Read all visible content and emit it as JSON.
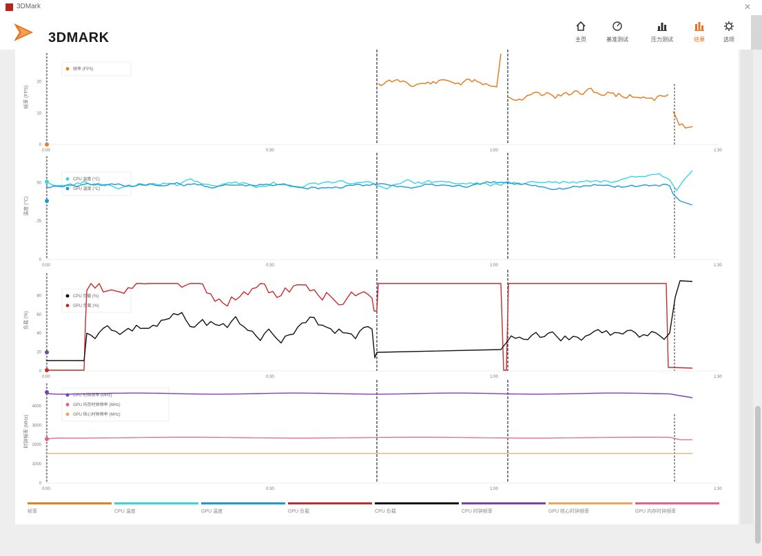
{
  "window": {
    "title": "3DMark"
  },
  "brand": {
    "name": "3DMARK"
  },
  "nav": [
    {
      "label": "主页",
      "icon": "home-icon"
    },
    {
      "label": "基准测试",
      "icon": "speedometer-icon"
    },
    {
      "label": "压力测试",
      "icon": "bar-chart-icon"
    },
    {
      "label": "结果",
      "icon": "results-chart-icon",
      "active": true
    },
    {
      "label": "选项",
      "icon": "gear-icon"
    }
  ],
  "colors": {
    "orange": "#e87d22",
    "cyan": "#35d6e0",
    "blue": "#1a9ad8",
    "red": "#c62b2b",
    "black": "#111111",
    "purple": "#7b3fb6",
    "peach": "#f0a35a",
    "pink": "#e4607e",
    "accent": "#e8741e"
  },
  "chart_data": [
    {
      "type": "line",
      "ylabel": "帧率 (FPS)",
      "y_ticks": [
        "0",
        "10",
        "20"
      ],
      "ylim": [
        0,
        28
      ],
      "x_ticks": [
        "0:00",
        "0:30",
        "1:00",
        "1:30"
      ],
      "legend": [
        "帧率 (FPS)"
      ],
      "series": [
        {
          "name": "帧率 (FPS)",
          "color": "orange",
          "values": []
        }
      ]
    },
    {
      "type": "line",
      "ylabel": "温度 (°C)",
      "y_ticks": [
        "0",
        "25",
        "50"
      ],
      "ylim": [
        0,
        65
      ],
      "x_ticks": [
        "0:00",
        "0:30",
        "1:00",
        "1:30"
      ],
      "legend": [
        "CPU 温度 (°C)",
        "GPU 温度 (°C)"
      ],
      "series": [
        {
          "name": "CPU 温度 (°C)",
          "color": "cyan"
        },
        {
          "name": "GPU 温度 (°C)",
          "color": "blue"
        }
      ]
    },
    {
      "type": "line",
      "ylabel": "负载 (%)",
      "y_ticks": [
        "0",
        "20",
        "40",
        "60",
        "80"
      ],
      "ylim": [
        0,
        100
      ],
      "x_ticks": [
        "0:00",
        "0:30",
        "1:00",
        "1:30"
      ],
      "legend": [
        "CPU 负载 (%)",
        "GPU 负载 (%)"
      ],
      "series": [
        {
          "name": "CPU 负载 (%)",
          "color": "black"
        },
        {
          "name": "GPU 负载 (%)",
          "color": "red"
        }
      ]
    },
    {
      "type": "line",
      "ylabel": "时钟频率 (MHz)",
      "y_ticks": [
        "0",
        "1000",
        "2000",
        "3000",
        "4000"
      ],
      "ylim": [
        0,
        5000
      ],
      "x_ticks": [
        "0:00",
        "0:30",
        "1:00",
        "1:30"
      ],
      "legend": [
        "CPU 时钟频率 (MHz)",
        "GPU 内存时钟频率 (MHz)",
        "GPU 核心时钟频率 (MHz)"
      ],
      "series": [
        {
          "name": "CPU 时钟频率 (MHz)",
          "color": "purple"
        },
        {
          "name": "GPU 内存时钟频率 (MHz)",
          "color": "pink"
        },
        {
          "name": "GPU 核心时钟频率 (MHz)",
          "color": "peach"
        }
      ]
    }
  ],
  "bottom_legend": [
    {
      "label": "帧率",
      "color": "orange"
    },
    {
      "label": "CPU 温度",
      "color": "cyan"
    },
    {
      "label": "GPU 温度",
      "color": "blue"
    },
    {
      "label": "GPU 负载",
      "color": "red"
    },
    {
      "label": "CPU 负载",
      "color": "black"
    },
    {
      "label": "CPU 时钟频率",
      "color": "purple"
    },
    {
      "label": "GPU 核心时钟频率",
      "color": "peach"
    },
    {
      "label": "GPU 内存时钟频率",
      "color": "pink"
    }
  ]
}
